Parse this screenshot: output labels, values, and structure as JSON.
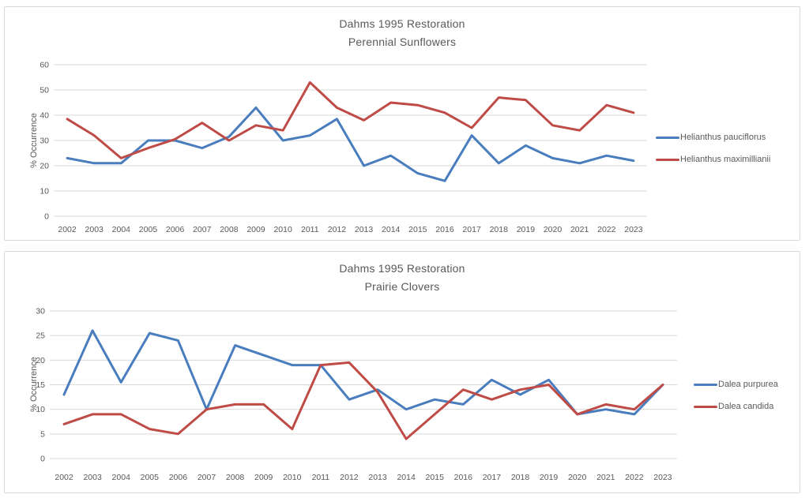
{
  "colors": {
    "series_blue": "#4a7dbe",
    "series_red": "#bf4b47",
    "gridline": "#d9d9d9",
    "text": "#595959",
    "chart_border": "#d9d9d9",
    "background": "#ffffff"
  },
  "chart_data": [
    {
      "type": "line",
      "title": "Dahms 1995 Restoration",
      "subtitle": "Perennial Sunflowers",
      "ylabel": "% Occurrence",
      "ylim": [
        0,
        60
      ],
      "ytick_step": 10,
      "grid": true,
      "legend_position": "right",
      "categories": [
        "2002",
        "2003",
        "2004",
        "2005",
        "2006",
        "2007",
        "2008",
        "2009",
        "2010",
        "2011",
        "2012",
        "2013",
        "2014",
        "2015",
        "2016",
        "2017",
        "2018",
        "2019",
        "2020",
        "2021",
        "2022",
        "2023"
      ],
      "series": [
        {
          "name": "Helianthus pauciflorus",
          "color": "#4a7dbe",
          "values": [
            23,
            21,
            21,
            30,
            30,
            27,
            31.5,
            43,
            30,
            32,
            38.5,
            20,
            24,
            17,
            14,
            32,
            21,
            28,
            23,
            21,
            24,
            22
          ]
        },
        {
          "name": "Helianthus maximillianii",
          "color": "#bf4b47",
          "values": [
            38.5,
            32,
            23,
            27,
            30.5,
            37,
            30,
            36,
            34,
            53,
            43,
            38,
            45,
            44,
            41,
            35,
            47,
            46,
            36,
            34,
            44,
            41
          ]
        }
      ]
    },
    {
      "type": "line",
      "title": "Dahms 1995 Restoration",
      "subtitle": "Prairie Clovers",
      "ylabel": "% Occurrence",
      "ylim": [
        0,
        30
      ],
      "ytick_step": 5,
      "grid": true,
      "legend_position": "right",
      "categories": [
        "2002",
        "2003",
        "2004",
        "2005",
        "2006",
        "2007",
        "2008",
        "2009",
        "2010",
        "2011",
        "2012",
        "2013",
        "2014",
        "2015",
        "2016",
        "2017",
        "2018",
        "2019",
        "2020",
        "2021",
        "2022",
        "2023"
      ],
      "series": [
        {
          "name": "Dalea purpurea",
          "color": "#4a7dbe",
          "values": [
            13,
            26,
            15.5,
            25.5,
            24,
            10,
            23,
            21,
            19,
            19,
            12,
            14,
            10,
            12,
            11,
            16,
            13,
            16,
            9,
            10,
            9,
            15
          ]
        },
        {
          "name": "Dalea candida",
          "color": "#bf4b47",
          "values": [
            7,
            9,
            9,
            6,
            5,
            10,
            11,
            11,
            6,
            19,
            19.5,
            13.5,
            4,
            9,
            14,
            12,
            14,
            15,
            9,
            11,
            10,
            15
          ]
        }
      ]
    }
  ]
}
